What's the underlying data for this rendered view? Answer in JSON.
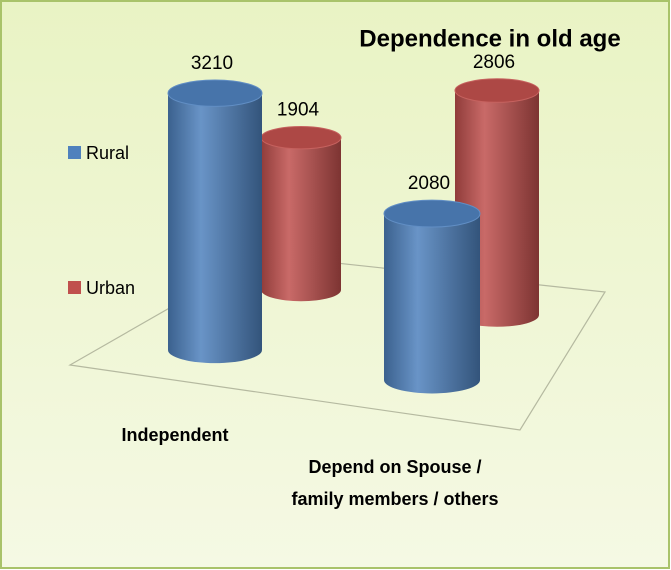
{
  "chart_data": {
    "type": "bar",
    "title": "Dependence in old age",
    "categories": [
      "Independent",
      "Depend on Spouse / family members / others"
    ],
    "series": [
      {
        "name": "Rural",
        "color": "#4f81bd",
        "values": [
          3210,
          2080
        ]
      },
      {
        "name": "Urban",
        "color": "#c0504d",
        "values": [
          1904,
          2806
        ]
      }
    ]
  }
}
